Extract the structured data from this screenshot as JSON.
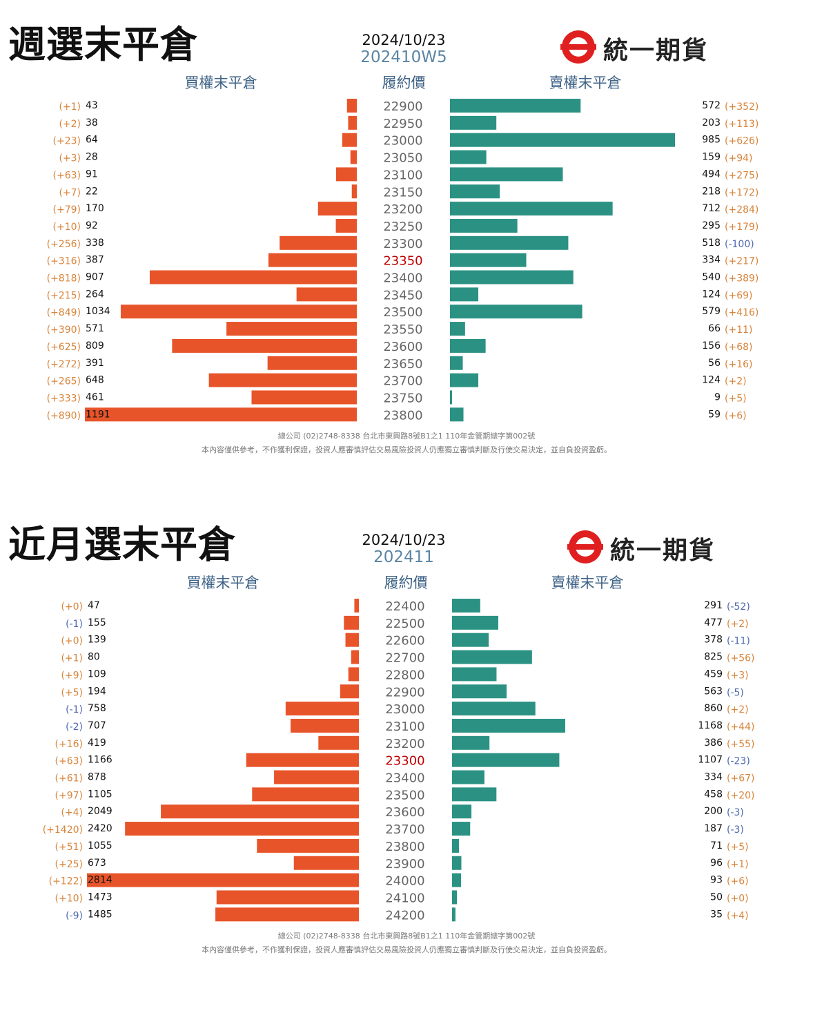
{
  "brand": {
    "name": "統一期貨"
  },
  "colors": {
    "call": "#e8542a",
    "put": "#2b9283",
    "change_pos": "#d9843a",
    "change_neg": "#4d68b0",
    "atm": "#c00000",
    "strike": "#666666",
    "header": "#3e6286"
  },
  "footer": {
    "line1": "總公司 (02)2748-8338 台北市東興路8號B1之1 110年金管期總字第002號",
    "line2": "本內容僅供參考，不作獲利保證，投資人應審慎評估交易風險投資人仍應獨立審慎判斷及行使交易決定，並自負投資盈虧。"
  },
  "panels": [
    {
      "title": "週選末平倉",
      "date": "2024/10/23",
      "code": "202410W5",
      "call_header": "買權末平倉",
      "strike_header": "履約價",
      "put_header": "賣權末平倉",
      "chart_data": {
        "type": "bar",
        "title": "週選末平倉",
        "categories": [
          "22900",
          "22950",
          "23000",
          "23050",
          "23100",
          "23150",
          "23200",
          "23250",
          "23300",
          "23350",
          "23400",
          "23450",
          "23500",
          "23550",
          "23600",
          "23650",
          "23700",
          "23750",
          "23800"
        ],
        "atm_strike": "23350",
        "series": [
          {
            "name": "買權末平倉",
            "values": [
              43,
              38,
              64,
              28,
              91,
              22,
              170,
              92,
              338,
              387,
              907,
              264,
              1034,
              571,
              809,
              391,
              648,
              461,
              1191
            ],
            "changes": [
              "(+1)",
              "(+2)",
              "(+23)",
              "(+3)",
              "(+63)",
              "(+7)",
              "(+79)",
              "(+10)",
              "(+256)",
              "(+316)",
              "(+818)",
              "(+215)",
              "(+849)",
              "(+390)",
              "(+625)",
              "(+272)",
              "(+265)",
              "(+333)",
              "(+890)"
            ]
          },
          {
            "name": "賣權末平倉",
            "values": [
              572,
              203,
              985,
              159,
              494,
              218,
              712,
              295,
              518,
              334,
              540,
              124,
              579,
              66,
              156,
              56,
              124,
              9,
              59
            ],
            "changes": [
              "(+352)",
              "(+113)",
              "(+626)",
              "(+94)",
              "(+275)",
              "(+172)",
              "(+284)",
              "(+179)",
              "(-100)",
              "(+217)",
              "(+389)",
              "(+69)",
              "(+416)",
              "(+11)",
              "(+68)",
              "(+16)",
              "(+2)",
              "(+5)",
              "(+6)"
            ]
          }
        ]
      }
    },
    {
      "title": "近月選末平倉",
      "date": "2024/10/23",
      "code": "202411",
      "call_header": "買權末平倉",
      "strike_header": "履約價",
      "put_header": "賣權末平倉",
      "chart_data": {
        "type": "bar",
        "title": "近月選末平倉",
        "categories": [
          "22400",
          "22500",
          "22600",
          "22700",
          "22800",
          "22900",
          "23000",
          "23100",
          "23200",
          "23300",
          "23400",
          "23500",
          "23600",
          "23700",
          "23800",
          "23900",
          "24000",
          "24100",
          "24200"
        ],
        "atm_strike": "23300",
        "series": [
          {
            "name": "買權末平倉",
            "values": [
              47,
              155,
              139,
              80,
              109,
              194,
              758,
              707,
              419,
              1166,
              878,
              1105,
              2049,
              2420,
              1055,
              673,
              2814,
              1473,
              1485
            ],
            "changes": [
              "(+0)",
              "(-1)",
              "(+0)",
              "(+1)",
              "(+9)",
              "(+5)",
              "(-1)",
              "(-2)",
              "(+16)",
              "(+63)",
              "(+61)",
              "(+97)",
              "(+4)",
              "(+1420)",
              "(+51)",
              "(+25)",
              "(+122)",
              "(+10)",
              "(-9)"
            ]
          },
          {
            "name": "賣權末平倉",
            "values": [
              291,
              477,
              378,
              825,
              459,
              563,
              860,
              1168,
              386,
              1107,
              334,
              458,
              200,
              187,
              71,
              96,
              93,
              50,
              35
            ],
            "changes": [
              "(-52)",
              "(+2)",
              "(-11)",
              "(+56)",
              "(+3)",
              "(-5)",
              "(+2)",
              "(+44)",
              "(+55)",
              "(-23)",
              "(+67)",
              "(+20)",
              "(-3)",
              "(-3)",
              "(+5)",
              "(+1)",
              "(+6)",
              "(+0)",
              "(+4)"
            ]
          }
        ]
      }
    }
  ]
}
